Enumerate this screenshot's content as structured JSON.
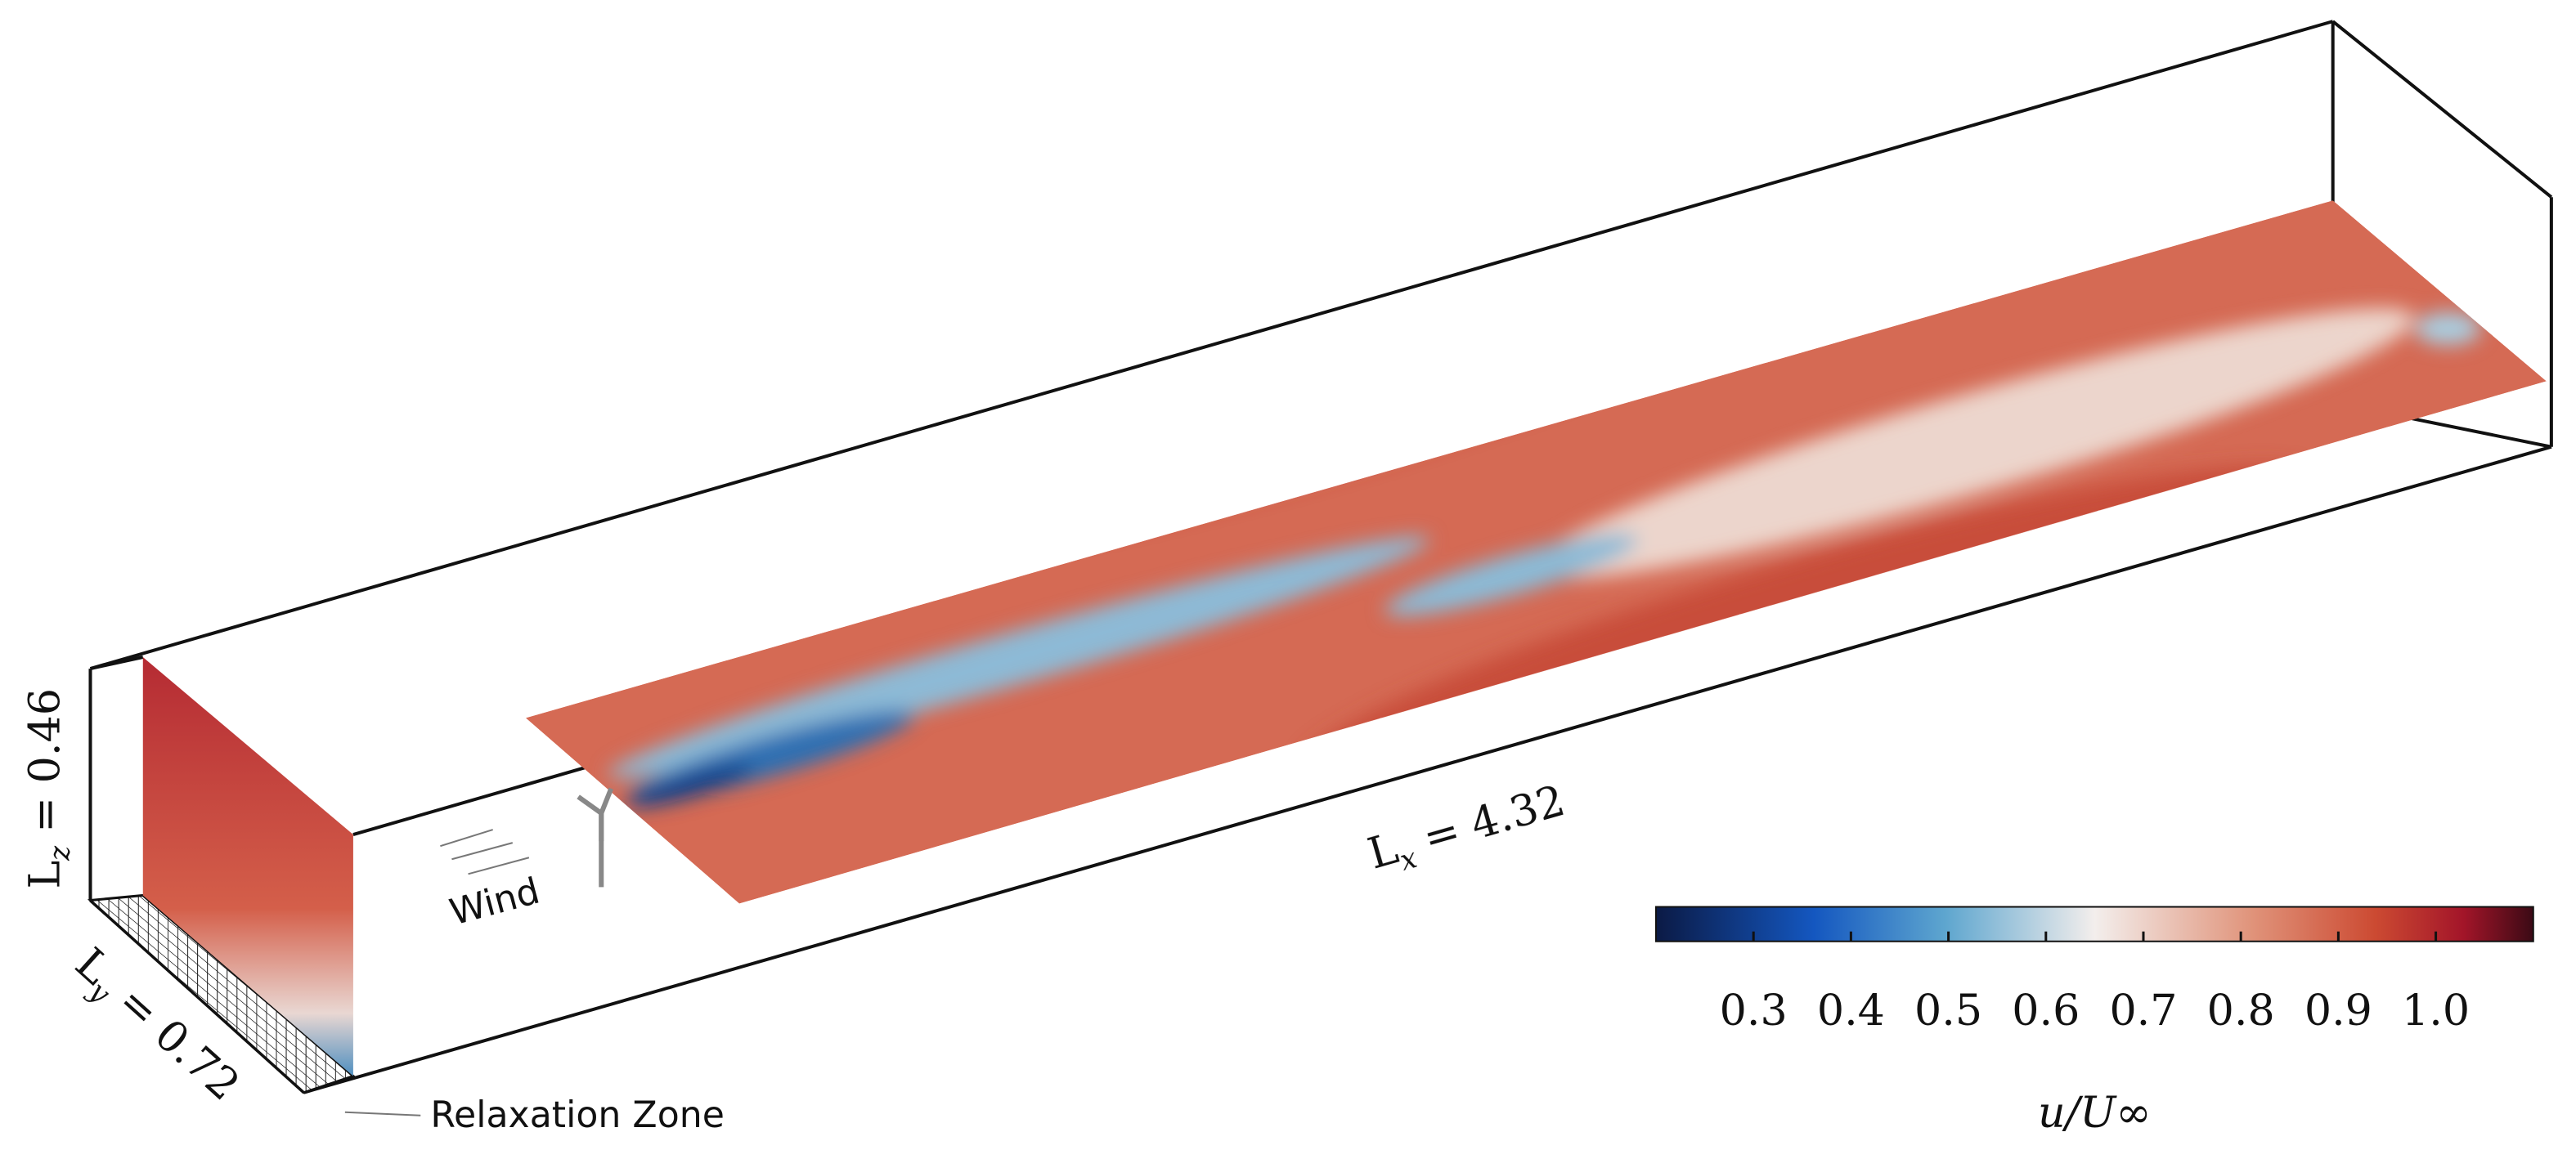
{
  "dimensions": {
    "lz": {
      "name": "L",
      "sub": "z",
      "text": "= 0.46"
    },
    "ly": {
      "name": "L",
      "sub": "y",
      "text": "= 0.72"
    },
    "lx": {
      "name": "L",
      "sub": "x",
      "text": "= 4.32"
    }
  },
  "annotations": {
    "wind": "Wind",
    "relaxation": "Relaxation Zone"
  },
  "colorbar": {
    "label": "u/U∞",
    "lim": [
      0.2,
      1.1
    ],
    "ticks": [
      0.3,
      0.4,
      0.5,
      0.6,
      0.7,
      0.8,
      0.9,
      {
        "value": 1,
        "label": "1.0"
      }
    ]
  }
}
